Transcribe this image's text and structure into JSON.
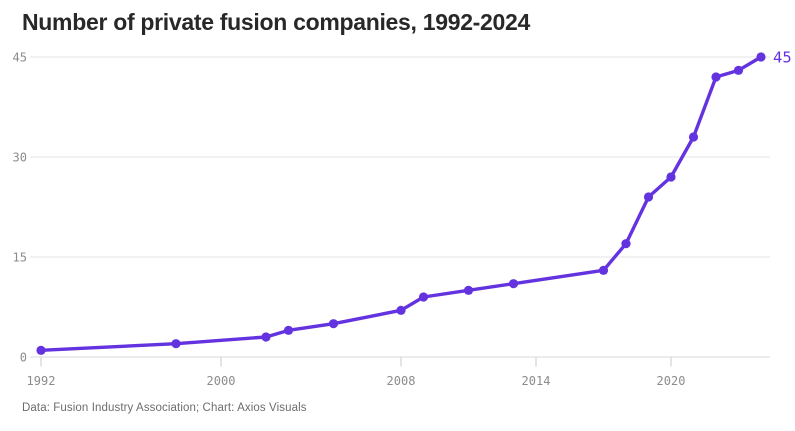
{
  "header": {
    "title": "Number of private fusion companies, 1992-2024"
  },
  "footer": {
    "credit": "Data: Fusion Industry Association; Chart: Axios Visuals"
  },
  "colors": {
    "accent_purple": "#6433e0",
    "grid_gray": "#e3e3e3",
    "axis_label_gray": "#8c8c8c",
    "tick_gray": "#c9c9c9"
  },
  "chart_data": {
    "type": "line",
    "title": "Number of private fusion companies, 1992-2024",
    "x": [
      1992,
      1998,
      2002,
      2003,
      2005,
      2008,
      2009,
      2011,
      2013,
      2017,
      2018,
      2019,
      2020,
      2021,
      2022,
      2023,
      2024
    ],
    "values": [
      1,
      2,
      3,
      4,
      5,
      7,
      9,
      10,
      11,
      13,
      17,
      24,
      27,
      33,
      42,
      43,
      45
    ],
    "xlim": [
      1992,
      2024
    ],
    "ylim": [
      0,
      45
    ],
    "x_ticks": {
      "years": [
        1992,
        2000,
        2008,
        2014,
        2020
      ],
      "labels": [
        "1992",
        "2000",
        "2008",
        "2014",
        "2020"
      ]
    },
    "y_ticks": {
      "values": [
        0,
        15,
        30,
        45
      ],
      "labels": [
        "0",
        "15",
        "30",
        "45"
      ]
    },
    "grid": "horizontal",
    "legend": false,
    "end_label": "45",
    "line_color": "#6433e0",
    "xlabel": "",
    "ylabel": ""
  }
}
